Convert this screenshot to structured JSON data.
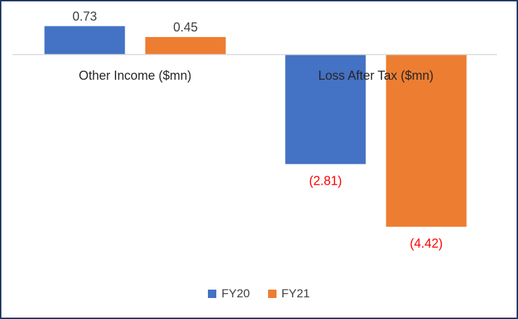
{
  "chart_data": {
    "type": "bar",
    "categories": [
      "Other Income ($mn)",
      "Loss After Tax ($mn)"
    ],
    "series": [
      {
        "name": "FY20",
        "color": "#4472c4",
        "values": [
          0.73,
          -2.81
        ],
        "labels": [
          "0.73",
          "(2.81)"
        ]
      },
      {
        "name": "FY21",
        "color": "#ed7d31",
        "values": [
          0.45,
          -4.42
        ],
        "labels": [
          "0.45",
          "(4.42)"
        ]
      }
    ],
    "negative_label_color": "#ff0000",
    "positive_label_color": "#404040",
    "title": "",
    "xlabel": "",
    "ylabel": "",
    "ylim": [
      -4.42,
      0.73
    ],
    "grid": false,
    "legend_position": "bottom"
  }
}
